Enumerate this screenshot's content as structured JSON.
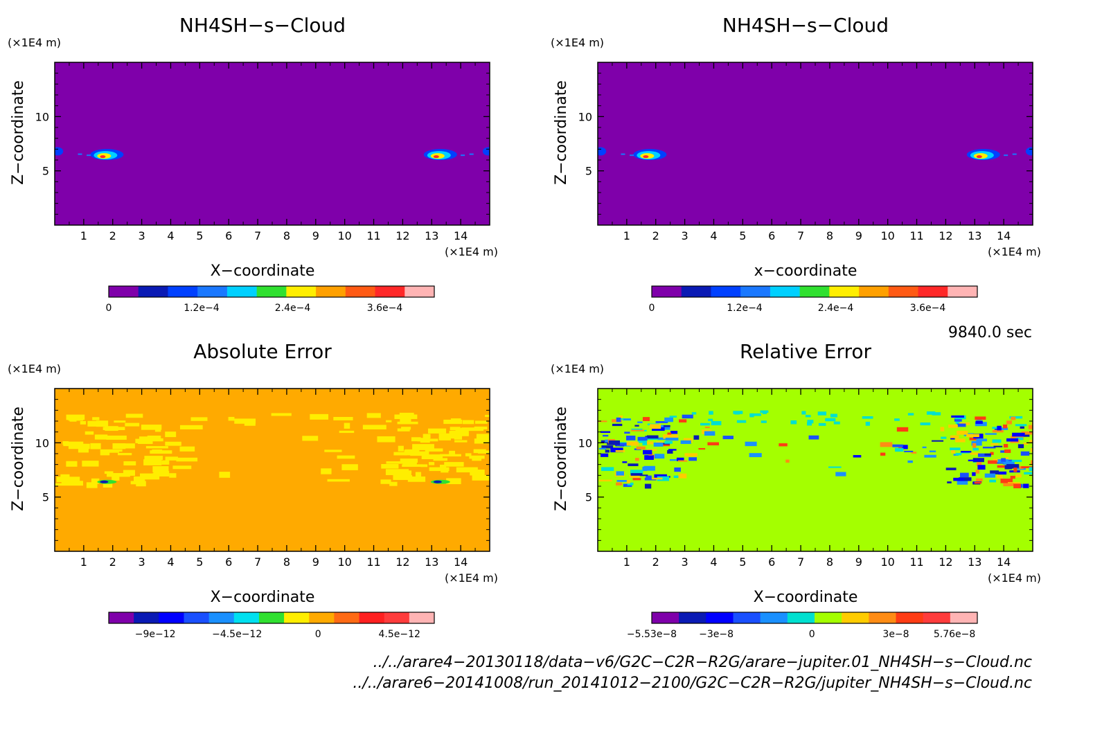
{
  "chart_data": [
    {
      "type": "heatmap",
      "title": "NH4SH−s−Cloud",
      "xlabel": "X−coordinate",
      "ylabel": "Z−coordinate",
      "x_unit": "(×1E4 m)",
      "y_unit": "(×1E4 m)",
      "xlim": [
        0,
        15
      ],
      "ylim": [
        0,
        15
      ],
      "x_ticks": [
        "1",
        "2",
        "3",
        "4",
        "5",
        "6",
        "7",
        "8",
        "9",
        "10",
        "11",
        "12",
        "13",
        "14"
      ],
      "y_ticks": [
        "5",
        "10"
      ],
      "background_color": "#7f00aa",
      "colorbar": {
        "colors": [
          "#7f00aa",
          "#0a1ab4",
          "#0040ff",
          "#1a78ff",
          "#00d0ff",
          "#30e030",
          "#ffee00",
          "#ffa000",
          "#ff5a14",
          "#ff2828",
          "#ffb4b4"
        ],
        "labels": [
          "0",
          "1.2e−4",
          "2.4e−4",
          "3.6e−4"
        ]
      },
      "features": [
        {
          "desc": "cloud blob",
          "x": 1.8,
          "z": 6.5
        },
        {
          "desc": "cloud blob",
          "x": 13.3,
          "z": 6.5
        }
      ]
    },
    {
      "type": "heatmap",
      "title": "NH4SH−s−Cloud",
      "xlabel": "x−coordinate",
      "ylabel": "Z−coordinate",
      "x_unit": "(×1E4 m)",
      "y_unit": "(×1E4 m)",
      "xlim": [
        0,
        15
      ],
      "ylim": [
        0,
        15
      ],
      "x_ticks": [
        "1",
        "2",
        "3",
        "4",
        "5",
        "6",
        "7",
        "8",
        "9",
        "10",
        "11",
        "12",
        "13",
        "14"
      ],
      "y_ticks": [
        "5",
        "10"
      ],
      "background_color": "#7f00aa",
      "colorbar": {
        "colors": [
          "#7f00aa",
          "#0a1ab4",
          "#0040ff",
          "#1a78ff",
          "#00d0ff",
          "#30e030",
          "#ffee00",
          "#ffa000",
          "#ff5a14",
          "#ff2828",
          "#ffb4b4"
        ],
        "labels": [
          "0",
          "1.2e−4",
          "2.4e−4",
          "3.6e−4"
        ]
      },
      "features": [
        {
          "desc": "cloud blob",
          "x": 1.8,
          "z": 6.5
        },
        {
          "desc": "cloud blob",
          "x": 13.3,
          "z": 6.5
        }
      ]
    },
    {
      "type": "heatmap",
      "title": "Absolute Error",
      "xlabel": "X−coordinate",
      "ylabel": "Z−coordinate",
      "x_unit": "(×1E4 m)",
      "y_unit": "(×1E4 m)",
      "xlim": [
        0,
        15
      ],
      "ylim": [
        0,
        15
      ],
      "x_ticks": [
        "1",
        "2",
        "3",
        "4",
        "5",
        "6",
        "7",
        "8",
        "9",
        "10",
        "11",
        "12",
        "13",
        "14"
      ],
      "y_ticks": [
        "5",
        "10"
      ],
      "background_color": "#ffaa00",
      "colorbar": {
        "colors": [
          "#7f00aa",
          "#0a1ab4",
          "#0000ff",
          "#1a50ff",
          "#1a90ff",
          "#00e0f0",
          "#30e030",
          "#ffee00",
          "#ffaa00",
          "#ff6a14",
          "#ff2020",
          "#ff3c3c",
          "#ffb4b4"
        ],
        "labels": [
          "−9e−12",
          "−4.5e−12",
          "0",
          "4.5e−12"
        ]
      },
      "features": [
        {
          "desc": "noise band",
          "z_range": [
            6,
            12.5
          ]
        }
      ]
    },
    {
      "type": "heatmap",
      "title": "Relative Error",
      "xlabel": "X−coordinate",
      "ylabel": "Z−coordinate",
      "x_unit": "(×1E4 m)",
      "y_unit": "(×1E4 m)",
      "xlim": [
        0,
        15
      ],
      "ylim": [
        0,
        15
      ],
      "x_ticks": [
        "1",
        "2",
        "3",
        "4",
        "5",
        "6",
        "7",
        "8",
        "9",
        "10",
        "11",
        "12",
        "13",
        "14"
      ],
      "y_ticks": [
        "5",
        "10"
      ],
      "background_color": "#a4ff00",
      "colorbar": {
        "colors": [
          "#7f00aa",
          "#0a1ab4",
          "#0000ff",
          "#1a50ff",
          "#1a90ff",
          "#00e0d0",
          "#a4ff00",
          "#ffcc00",
          "#ff8c14",
          "#ff3c14",
          "#ff3c3c",
          "#ffb4b4"
        ],
        "labels": [
          "−5.53e−8",
          "−3e−8",
          "0",
          "3e−8",
          "5.76e−8"
        ]
      },
      "features": [
        {
          "desc": "noise band",
          "z_range": [
            6,
            12.5
          ]
        }
      ]
    }
  ],
  "time_label": "9840.0 sec",
  "file_paths": [
    "../../arare4−20130118/data−v6/G2C−C2R−R2G/arare−jupiter.01_NH4SH−s−Cloud.nc",
    "../../arare6−20141008/run_20141012−2100/G2C−C2R−R2G/jupiter_NH4SH−s−Cloud.nc"
  ]
}
